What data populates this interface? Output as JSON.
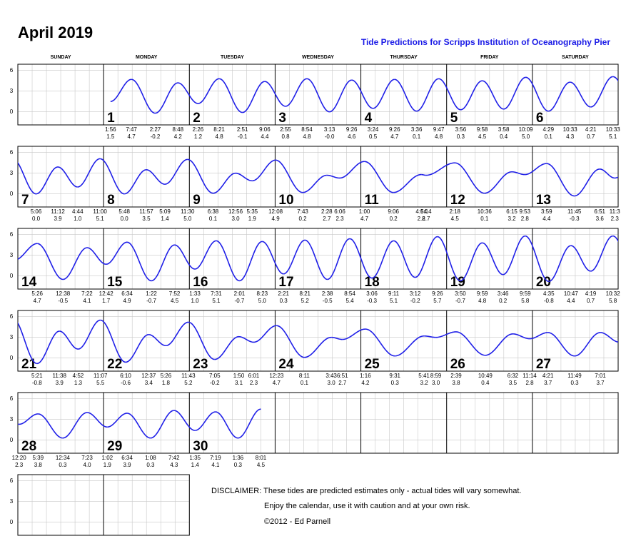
{
  "chart_data": {
    "type": "tide-calendar",
    "title": "April 2019",
    "subtitle": "Tide Predictions for Scripps Institution of Oceanography Pier",
    "weekdays": [
      "SUNDAY",
      "MONDAY",
      "TUESDAY",
      "WEDNESDAY",
      "THURSDAY",
      "FRIDAY",
      "SATURDAY"
    ],
    "ylim": [
      -1.9,
      6.9
    ],
    "yticks": [
      0,
      3,
      6
    ],
    "grid": true,
    "color": "#2020e8",
    "days": [
      {
        "day": 1,
        "times": [
          "1:56",
          "7:47",
          "2:27",
          "8:48"
        ],
        "values": [
          1.5,
          4.7,
          -0.2,
          4.2
        ],
        "value_labels": [
          "1.5",
          "4.7",
          "-0.2",
          "4.2"
        ]
      },
      {
        "day": 2,
        "times": [
          "2:26",
          "8:21",
          "2:51",
          "9:06"
        ],
        "values": [
          1.2,
          4.8,
          -0.1,
          4.4
        ],
        "value_labels": [
          "1.2",
          "4.8",
          "-0.1",
          "4.4"
        ]
      },
      {
        "day": 3,
        "times": [
          "2:55",
          "8:54",
          "3:13",
          "9:26"
        ],
        "values": [
          0.8,
          4.8,
          0,
          4.6
        ],
        "value_labels": [
          "0.8",
          "4.8",
          "-0.0",
          "4.6"
        ]
      },
      {
        "day": 4,
        "times": [
          "3:24",
          "9:26",
          "3:36",
          "9:47"
        ],
        "values": [
          0.5,
          4.7,
          0.1,
          4.8
        ],
        "value_labels": [
          "0.5",
          "4.7",
          "0.1",
          "4.8"
        ]
      },
      {
        "day": 5,
        "times": [
          "3:56",
          "9:58",
          "3:58",
          "10:09"
        ],
        "values": [
          0.3,
          4.5,
          0.4,
          5
        ],
        "value_labels": [
          "0.3",
          "4.5",
          "0.4",
          "5.0"
        ]
      },
      {
        "day": 6,
        "times": [
          "4:29",
          "10:33",
          "4:21",
          "10:33"
        ],
        "values": [
          0.1,
          4.3,
          0.7,
          5.1
        ],
        "value_labels": [
          "0.1",
          "4.3",
          "0.7",
          "5.1"
        ]
      },
      {
        "day": 7,
        "times": [
          "5:06",
          "11:12",
          "4:44",
          "11:00"
        ],
        "values": [
          0,
          3.9,
          1,
          5.1
        ],
        "value_labels": [
          "0.0",
          "3.9",
          "1.0",
          "5.1"
        ]
      },
      {
        "day": 8,
        "times": [
          "5:48",
          "11:57",
          "5:09",
          "11:30"
        ],
        "values": [
          0,
          3.5,
          1.4,
          5
        ],
        "value_labels": [
          "0.0",
          "3.5",
          "1.4",
          "5.0"
        ]
      },
      {
        "day": 9,
        "times": [
          "6:38",
          "12:56",
          "5:35"
        ],
        "values": [
          0.1,
          3,
          1.9
        ],
        "value_labels": [
          "0.1",
          "3.0",
          "1.9"
        ]
      },
      {
        "day": 10,
        "times": [
          "12:08",
          "7:43",
          "2:28",
          "6:06"
        ],
        "values": [
          4.9,
          0.2,
          2.7,
          2.3
        ],
        "value_labels": [
          "4.9",
          "0.2",
          "2.7",
          "2.3"
        ]
      },
      {
        "day": 11,
        "times": [
          "1:00",
          "9:06",
          "4:54",
          "6:14"
        ],
        "values": [
          4.7,
          0.2,
          2.8,
          2.7
        ],
        "value_labels": [
          "4.7",
          "0.2",
          "2.8",
          "2.7"
        ]
      },
      {
        "day": 12,
        "times": [
          "2:18",
          "10:36",
          "6:15",
          "9:53"
        ],
        "values": [
          4.5,
          0.1,
          3.2,
          2.8
        ],
        "value_labels": [
          "4.5",
          "0.1",
          "3.2",
          "2.8"
        ]
      },
      {
        "day": 13,
        "times": [
          "3:59",
          "11:45",
          "6:51",
          "11:3"
        ],
        "values": [
          4.4,
          -0.3,
          3.6,
          2.3
        ],
        "value_labels": [
          "4.4",
          "-0.3",
          "3.6",
          "2.3"
        ]
      },
      {
        "day": 14,
        "times": [
          "5:26",
          "12:38",
          "7:22"
        ],
        "values": [
          4.7,
          -0.5,
          4.1
        ],
        "value_labels": [
          "4.7",
          "-0.5",
          "4.1"
        ]
      },
      {
        "day": 15,
        "times": [
          "12:42",
          "6:34",
          "1:22",
          "7:52"
        ],
        "values": [
          1.7,
          4.9,
          -0.7,
          4.5
        ],
        "value_labels": [
          "1.7",
          "4.9",
          "-0.7",
          "4.5"
        ]
      },
      {
        "day": 16,
        "times": [
          "1:33",
          "7:31",
          "2:01",
          "8:23"
        ],
        "values": [
          1,
          5.1,
          -0.7,
          5
        ],
        "value_labels": [
          "1.0",
          "5.1",
          "-0.7",
          "5.0"
        ]
      },
      {
        "day": 17,
        "times": [
          "2:21",
          "8:21",
          "2:38",
          "8:54"
        ],
        "values": [
          0.3,
          5.2,
          -0.5,
          5.4
        ],
        "value_labels": [
          "0.3",
          "5.2",
          "-0.5",
          "5.4"
        ]
      },
      {
        "day": 18,
        "times": [
          "3:06",
          "9:11",
          "3:12",
          "9:26"
        ],
        "values": [
          -0.3,
          5.1,
          -0.2,
          5.7
        ],
        "value_labels": [
          "-0.3",
          "5.1",
          "-0.2",
          "5.7"
        ]
      },
      {
        "day": 19,
        "times": [
          "3:50",
          "9:59",
          "3:46",
          "9:59"
        ],
        "values": [
          -0.7,
          4.8,
          0.2,
          5.8
        ],
        "value_labels": [
          "-0.7",
          "4.8",
          "0.2",
          "5.8"
        ]
      },
      {
        "day": 20,
        "times": [
          "4:35",
          "10:47",
          "4:19",
          "10:32"
        ],
        "values": [
          -0.8,
          4.4,
          0.7,
          5.8
        ],
        "value_labels": [
          "-0.8",
          "4.4",
          "0.7",
          "5.8"
        ]
      },
      {
        "day": 21,
        "times": [
          "5:21",
          "11:38",
          "4:52",
          "11:07"
        ],
        "values": [
          -0.8,
          3.9,
          1.3,
          5.5
        ],
        "value_labels": [
          "-0.8",
          "3.9",
          "1.3",
          "5.5"
        ]
      },
      {
        "day": 22,
        "times": [
          "6:10",
          "12:37",
          "5:26",
          "11:43"
        ],
        "values": [
          -0.6,
          3.4,
          1.8,
          5.2
        ],
        "value_labels": [
          "-0.6",
          "3.4",
          "1.8",
          "5.2"
        ]
      },
      {
        "day": 23,
        "times": [
          "7:05",
          "1:50",
          "6:01"
        ],
        "values": [
          -0.2,
          3.1,
          2.3
        ],
        "value_labels": [
          "-0.2",
          "3.1",
          "2.3"
        ]
      },
      {
        "day": 24,
        "times": [
          "12:23",
          "8:11",
          "3:43",
          "6:51"
        ],
        "values": [
          4.7,
          0.1,
          3,
          2.7
        ],
        "value_labels": [
          "4.7",
          "0.1",
          "3.0",
          "2.7"
        ]
      },
      {
        "day": 25,
        "times": [
          "1:16",
          "9:31",
          "5:41",
          "8:59"
        ],
        "values": [
          4.2,
          0.3,
          3.2,
          3
        ],
        "value_labels": [
          "4.2",
          "0.3",
          "3.2",
          "3.0"
        ]
      },
      {
        "day": 26,
        "times": [
          "2:39",
          "10:49",
          "6:32",
          "11:14"
        ],
        "values": [
          3.8,
          0.4,
          3.5,
          2.8
        ],
        "value_labels": [
          "3.8",
          "0.4",
          "3.5",
          "2.8"
        ]
      },
      {
        "day": 27,
        "times": [
          "4:21",
          "11:49",
          "7:01"
        ],
        "values": [
          3.7,
          0.3,
          3.7
        ],
        "value_labels": [
          "3.7",
          "0.3",
          "3.7"
        ]
      },
      {
        "day": 28,
        "times": [
          "12:20",
          "5:39",
          "12:34",
          "7:23"
        ],
        "values": [
          2.3,
          3.8,
          0.3,
          4
        ],
        "value_labels": [
          "2.3",
          "3.8",
          "0.3",
          "4.0"
        ]
      },
      {
        "day": 29,
        "times": [
          "1:02",
          "6:34",
          "1:08",
          "7:42"
        ],
        "values": [
          1.9,
          3.9,
          0.3,
          4.3
        ],
        "value_labels": [
          "1.9",
          "3.9",
          "0.3",
          "4.3"
        ]
      },
      {
        "day": 30,
        "times": [
          "1:35",
          "7:19",
          "1:36",
          "8:01"
        ],
        "values": [
          1.4,
          4.1,
          0.3,
          4.5
        ],
        "value_labels": [
          "1.4",
          "4.1",
          "0.3",
          "4.5"
        ]
      }
    ],
    "disclaimer": [
      "DISCLAIMER: These tides are predicted estimates only - actual tides will vary somewhat.",
      "Enjoy the calendar, use it with caution and at your own risk.",
      "©2012 - Ed Parnell"
    ]
  }
}
